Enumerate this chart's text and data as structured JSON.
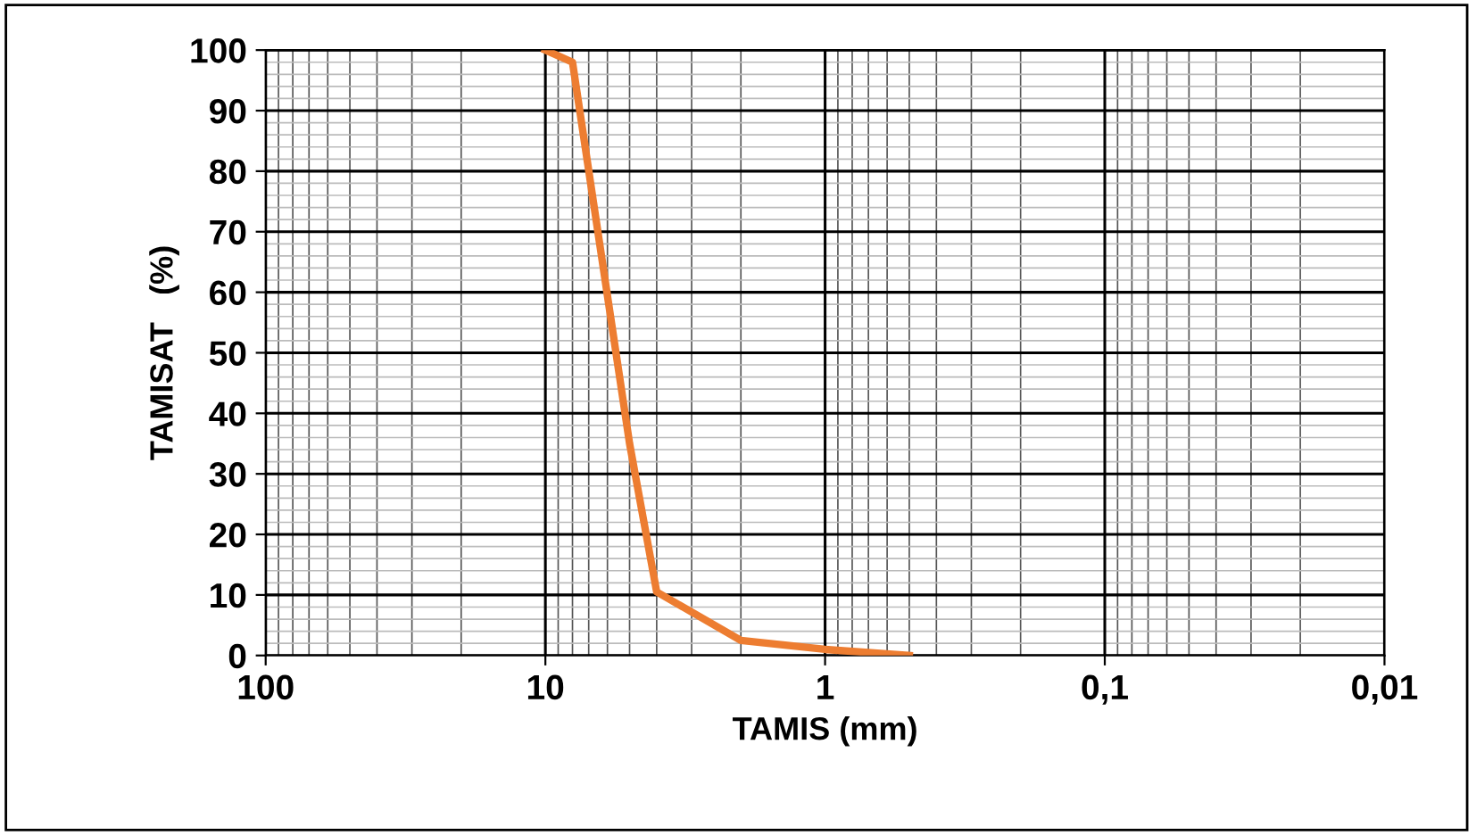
{
  "chart_data": {
    "type": "line",
    "xlabel": "TAMIS (mm)",
    "ylabel": "TAMISAT   (%)",
    "x": [
      10,
      8,
      5,
      4,
      2,
      1,
      0.5
    ],
    "series": [
      {
        "color": "#ed7d31",
        "values": [
          100,
          98,
          35,
          10.5,
          2.5,
          1,
          0
        ]
      }
    ],
    "log": "x",
    "xlim": [
      100,
      0.01
    ],
    "xticks": [
      100,
      10,
      1,
      {
        "value": 0.1,
        "label": "0,1"
      },
      {
        "value": 0.01,
        "label": "0,01"
      }
    ],
    "ylim": [
      0,
      100
    ],
    "yticks": [
      0,
      10,
      20,
      30,
      40,
      50,
      60,
      70,
      80,
      90,
      100
    ],
    "grid": true,
    "marker": "none",
    "line_style": "solid"
  }
}
